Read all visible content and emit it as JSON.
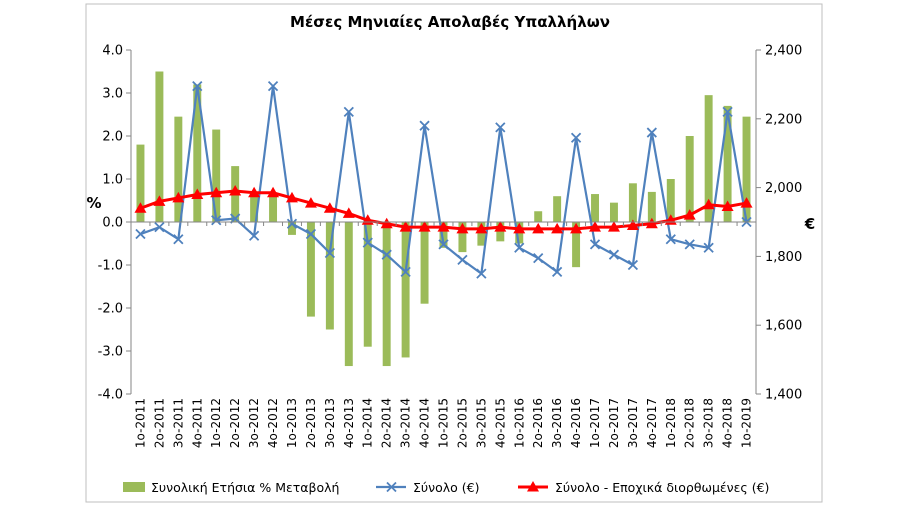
{
  "chart_data": {
    "type": "bar",
    "title": "Μέσες Μηνιαίες Απολαβές Υπαλλήλων",
    "ylabel_left": "%",
    "ylabel_right": "€",
    "ylim_left": [
      -4.0,
      4.0
    ],
    "ylim_right": [
      1400,
      2400
    ],
    "yticks_left": [
      "4.0",
      "3.0",
      "2.0",
      "1.0",
      "0.0",
      "-1.0",
      "-2.0",
      "-3.0",
      "-4.0"
    ],
    "yticks_right": [
      "2,400",
      "2,200",
      "2,000",
      "1,800",
      "1,600",
      "1,400"
    ],
    "categories": [
      "1o-2011",
      "2o-2011",
      "3o-2011",
      "4o-2011",
      "1o-2012",
      "2o-2012",
      "3o-2012",
      "4o-2012",
      "1o-2013",
      "2o-2013",
      "3o-2013",
      "4o-2013",
      "1o-2014",
      "2o-2014",
      "3o-2014",
      "4o-2014",
      "1o-2015",
      "2o-2015",
      "3o-2015",
      "4o-2015",
      "1o-2016",
      "2o-2016",
      "3o-2016",
      "4o-2016",
      "1o-2017",
      "2o-2017",
      "3o-2017",
      "4o-2017",
      "1o-2018",
      "2o-2018",
      "3o-2018",
      "4o-2018",
      "1o-2019"
    ],
    "series": [
      {
        "name": "Συνολική Ετήσια % Μεταβολή",
        "kind": "bar",
        "axis": "left",
        "color": "#9bbb59",
        "values": [
          1.8,
          3.5,
          2.45,
          3.2,
          2.15,
          1.3,
          0.7,
          0.6,
          -0.3,
          -2.2,
          -2.5,
          -3.35,
          -2.9,
          -3.35,
          -3.15,
          -1.9,
          -0.6,
          -0.7,
          -0.55,
          -0.45,
          -0.5,
          0.25,
          0.6,
          -1.05,
          0.65,
          0.45,
          0.9,
          0.7,
          1.0,
          2.0,
          2.95,
          2.7,
          2.45
        ]
      },
      {
        "name": "Σύνολο (€)",
        "kind": "line",
        "axis": "right",
        "color": "#4f81bd",
        "marker": "x",
        "values": [
          1865,
          1885,
          1850,
          2295,
          1905,
          1910,
          1860,
          2295,
          1895,
          1865,
          1810,
          2220,
          1840,
          1805,
          1755,
          2180,
          1835,
          1790,
          1750,
          2175,
          1825,
          1795,
          1755,
          2145,
          1835,
          1805,
          1775,
          2160,
          1850,
          1835,
          1825,
          2220,
          1900
        ]
      },
      {
        "name": "Σύνολο - Εποχικά διορθωμένες (€)",
        "kind": "line",
        "axis": "right",
        "color": "#ff0000",
        "marker": "triangle",
        "values": [
          1940,
          1960,
          1970,
          1980,
          1985,
          1990,
          1985,
          1985,
          1970,
          1955,
          1940,
          1925,
          1905,
          1895,
          1885,
          1885,
          1885,
          1880,
          1880,
          1885,
          1880,
          1880,
          1880,
          1880,
          1885,
          1885,
          1890,
          1895,
          1905,
          1920,
          1950,
          1945,
          1955
        ]
      }
    ],
    "legend_position": "bottom",
    "grid": false
  }
}
